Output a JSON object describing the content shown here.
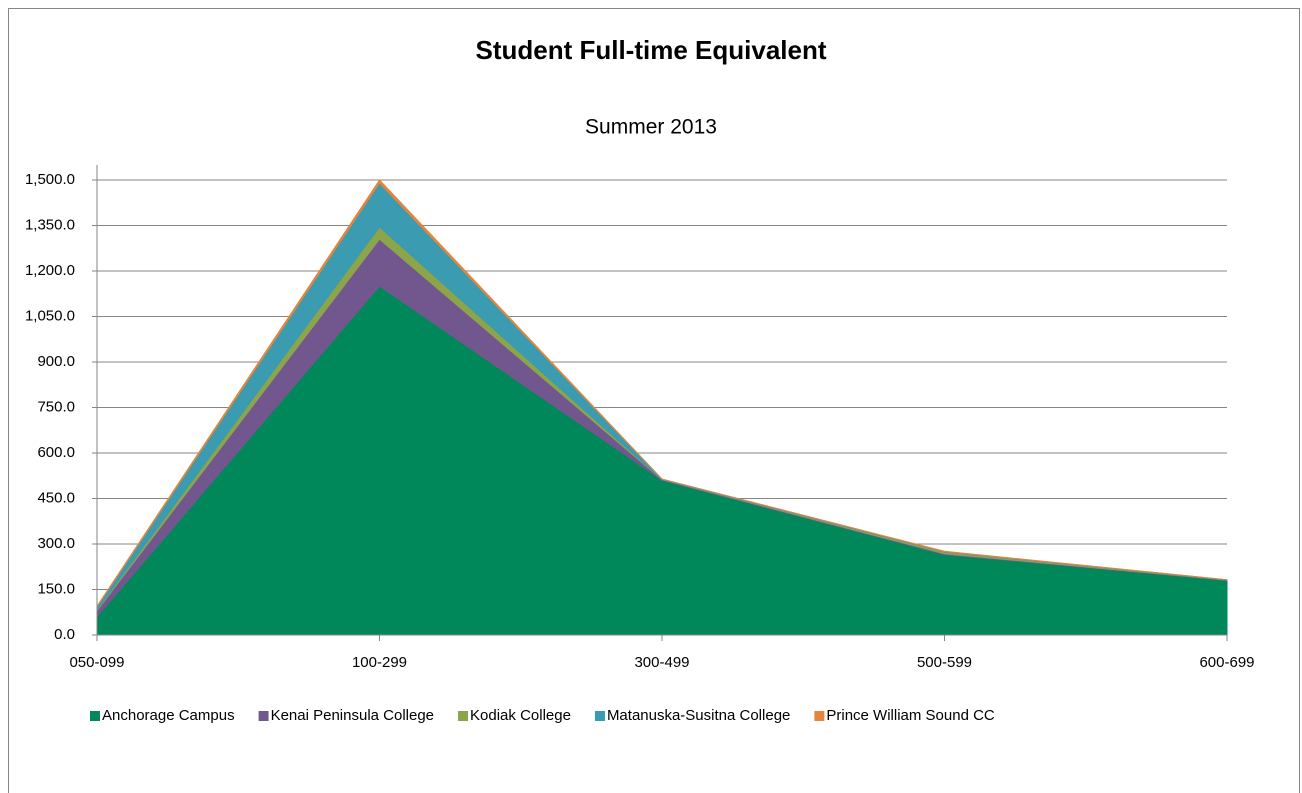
{
  "chart_data": {
    "type": "stacked_area",
    "title": "Student Full-time Equivalent",
    "subtitle": "Summer 2013",
    "categories": [
      "050-099",
      "100-299",
      "300-499",
      "500-599",
      "600-699"
    ],
    "series": [
      {
        "name": "Anchorage Campus",
        "color": "#00875a",
        "values": [
          60,
          1150,
          510,
          265,
          180
        ]
      },
      {
        "name": "Kenai Peninsula College",
        "color": "#72578f",
        "values": [
          20,
          155,
          2,
          3,
          1
        ]
      },
      {
        "name": "Kodiak College",
        "color": "#8ca54a",
        "values": [
          3,
          40,
          0,
          5,
          0
        ]
      },
      {
        "name": "Matanuska-Susitna College",
        "color": "#3a9bb1",
        "values": [
          10,
          145,
          2,
          2,
          1
        ]
      },
      {
        "name": "Prince William Sound CC",
        "color": "#e3853d",
        "values": [
          2,
          10,
          0,
          1,
          0
        ]
      }
    ],
    "ylim": [
      0,
      1500
    ],
    "yticks": [
      {
        "value": 0,
        "label": "0.0"
      },
      {
        "value": 150,
        "label": "150.0"
      },
      {
        "value": 300,
        "label": "300.0"
      },
      {
        "value": 450,
        "label": "450.0"
      },
      {
        "value": 600,
        "label": "600.0"
      },
      {
        "value": 750,
        "label": "750.0"
      },
      {
        "value": 900,
        "label": "900.0"
      },
      {
        "value": 1050,
        "label": "1,050.0"
      },
      {
        "value": 1200,
        "label": "1,200.0"
      },
      {
        "value": 1350,
        "label": "1,350.0"
      },
      {
        "value": 1500,
        "label": "1,500.0"
      }
    ],
    "grid": true,
    "legend": "bottom"
  }
}
